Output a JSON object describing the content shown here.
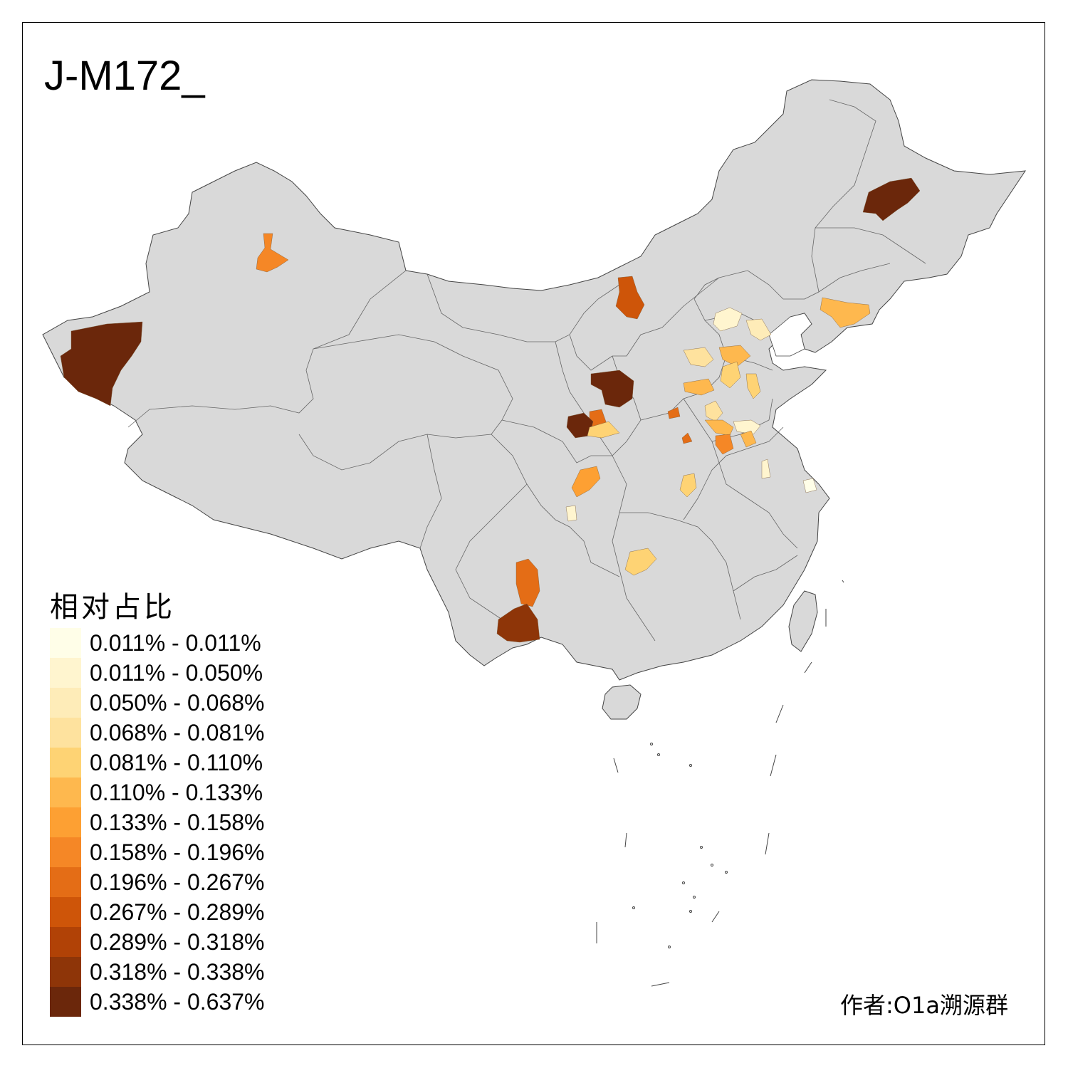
{
  "title": "J-M172_",
  "legend": {
    "title": "相对占比",
    "items": [
      {
        "label": "0.011% - 0.011%",
        "color": "#FFFEE8"
      },
      {
        "label": "0.011% - 0.050%",
        "color": "#FFF5CF"
      },
      {
        "label": "0.050% - 0.068%",
        "color": "#FEECB8"
      },
      {
        "label": "0.068% - 0.081%",
        "color": "#FEE29E"
      },
      {
        "label": "0.081% - 0.110%",
        "color": "#FED374"
      },
      {
        "label": "0.110% - 0.133%",
        "color": "#FEB84E"
      },
      {
        "label": "0.133% - 0.158%",
        "color": "#FDA033"
      },
      {
        "label": "0.158% - 0.196%",
        "color": "#F58726"
      },
      {
        "label": "0.196% - 0.267%",
        "color": "#E46D16"
      },
      {
        "label": "0.267% - 0.289%",
        "color": "#CE5509"
      },
      {
        "label": "0.289% - 0.318%",
        "color": "#B14206"
      },
      {
        "label": "0.318% - 0.338%",
        "color": "#8E3508"
      },
      {
        "label": "0.338% - 0.637%",
        "color": "#6B270B"
      }
    ]
  },
  "credit": "作者:O1a溯源群",
  "colors": {
    "land": "#D9D9D9",
    "border": "#555555",
    "frame": "#000000"
  }
}
